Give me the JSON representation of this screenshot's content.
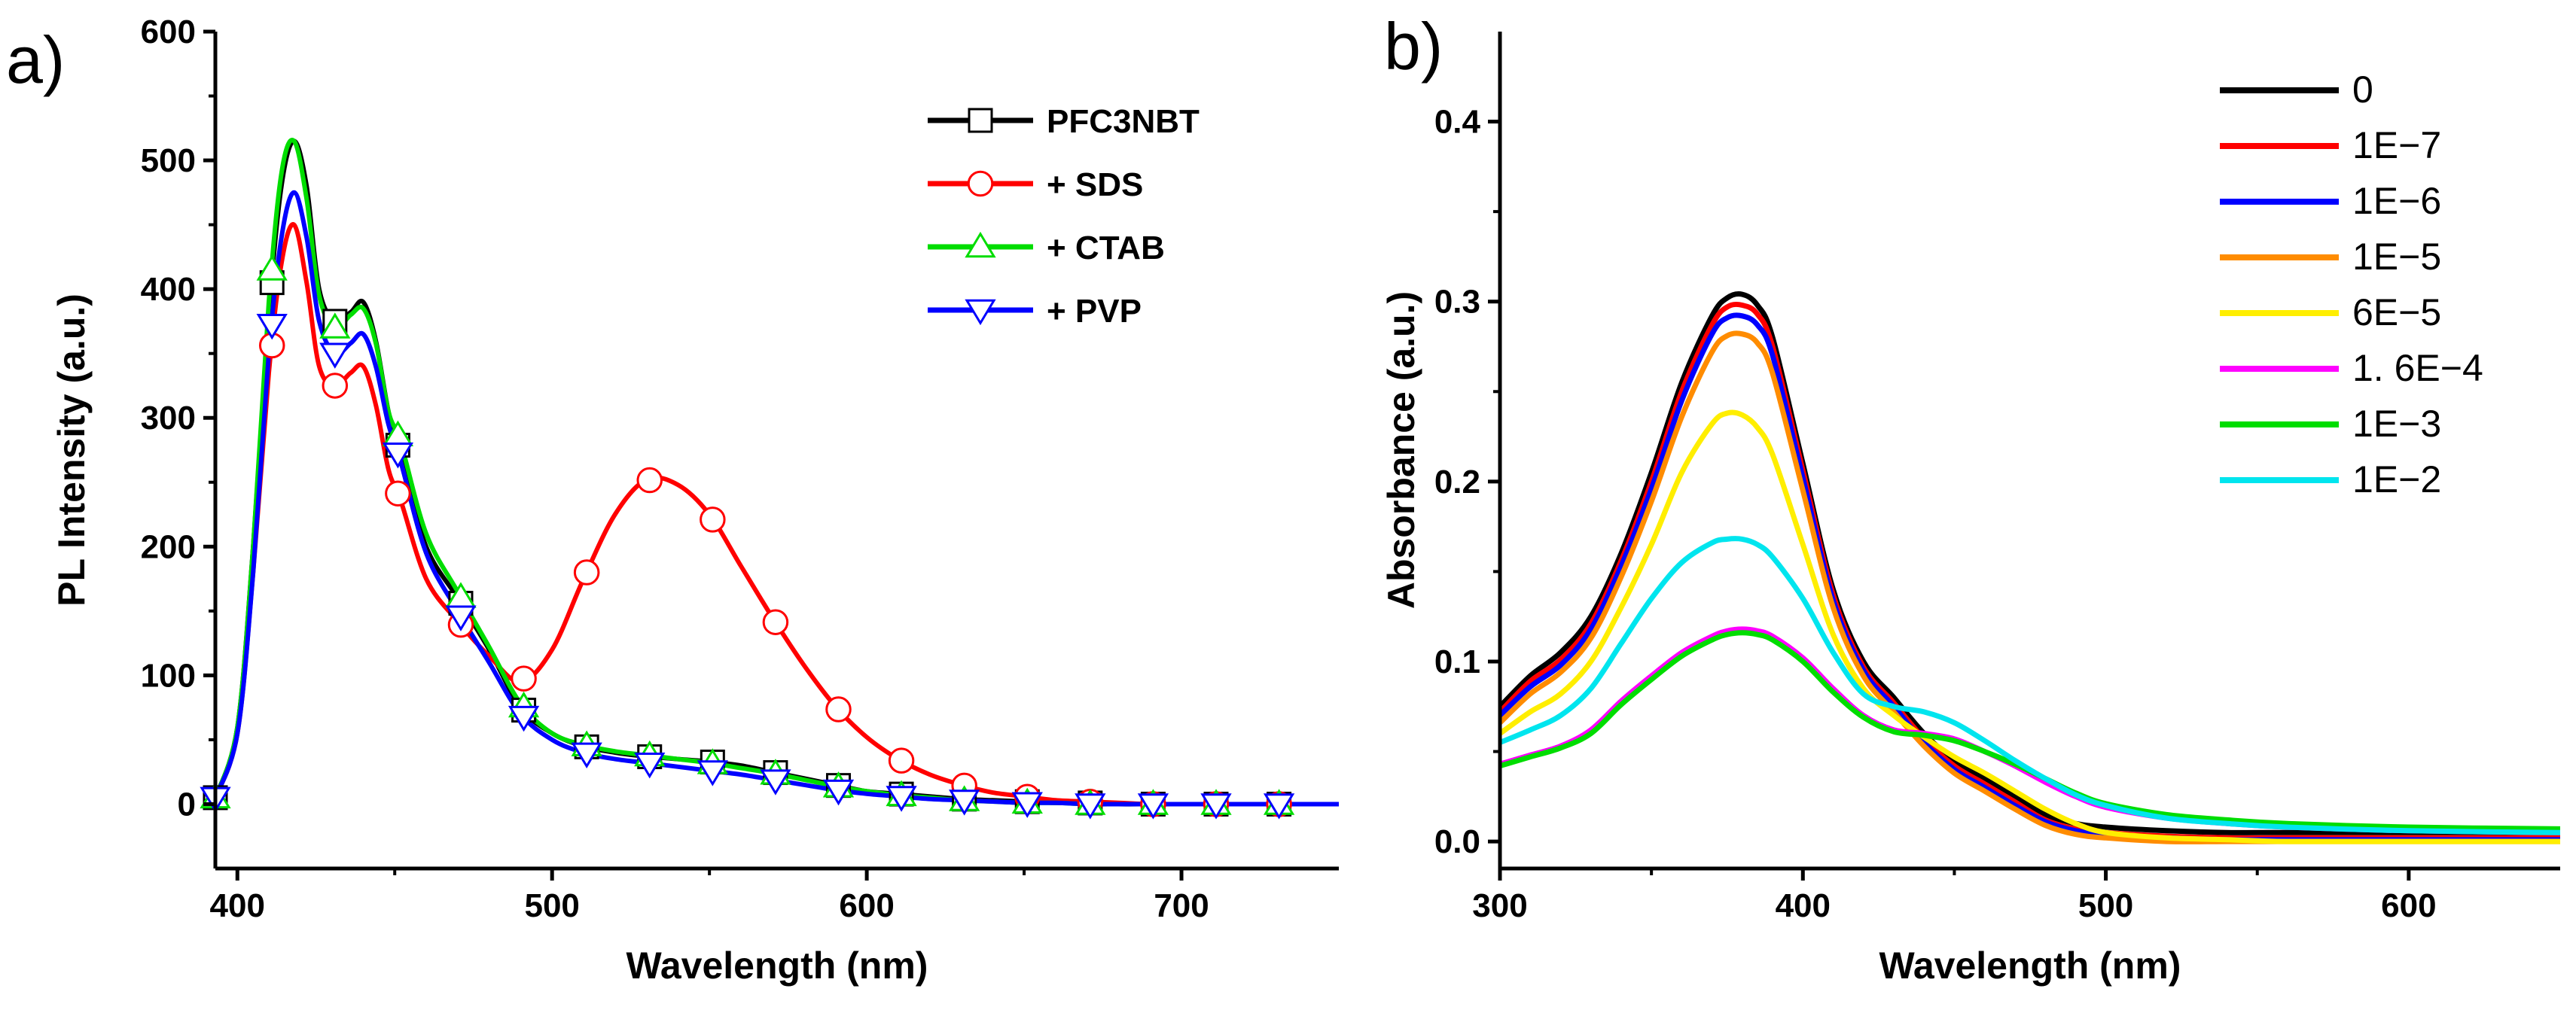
{
  "chart_data": [
    {
      "panel_label": "a)",
      "type": "line",
      "xlabel": "Wavelength (nm)",
      "ylabel": "PL Intensity (a.u.)",
      "xlim": [
        393,
        750
      ],
      "ylim": [
        -50,
        600
      ],
      "xticks": [
        400,
        500,
        600,
        700
      ],
      "yticks": [
        0,
        100,
        200,
        300,
        400,
        500,
        600
      ],
      "legend_position": "top-right",
      "series": [
        {
          "name": "PFC3NBT",
          "color": "#000000",
          "marker": "square",
          "x": [
            393,
            400,
            405,
            410,
            414,
            418,
            422,
            426,
            431,
            436,
            440,
            444,
            448,
            452,
            460,
            470,
            480,
            490,
            500,
            510,
            520,
            530,
            540,
            550,
            560,
            570,
            580,
            590,
            600,
            610,
            620,
            630,
            640,
            650,
            660,
            670,
            680,
            690,
            700,
            710,
            720,
            730,
            740,
            750
          ],
          "y": [
            5,
            60,
            200,
            380,
            480,
            515,
            480,
            400,
            375,
            382,
            390,
            360,
            305,
            270,
            200,
            160,
            120,
            75,
            55,
            45,
            40,
            37,
            35,
            33,
            30,
            25,
            20,
            15,
            10,
            8,
            6,
            4,
            3,
            2,
            1,
            1,
            0,
            0,
            0,
            0,
            0,
            0,
            0,
            0
          ],
          "marker_x": [
            393,
            411,
            431,
            451,
            471,
            491,
            511,
            531,
            551,
            571,
            591,
            611,
            631,
            651,
            671,
            691,
            711,
            731
          ]
        },
        {
          "name": "+ SDS",
          "color": "#ff0000",
          "marker": "circle",
          "x": [
            393,
            400,
            405,
            410,
            414,
            418,
            422,
            426,
            431,
            436,
            440,
            444,
            448,
            452,
            460,
            470,
            480,
            490,
            500,
            510,
            520,
            530,
            540,
            550,
            560,
            570,
            580,
            590,
            600,
            610,
            620,
            630,
            640,
            650,
            660,
            670,
            680,
            690,
            700,
            710,
            720,
            730,
            740,
            750
          ],
          "y": [
            5,
            55,
            180,
            335,
            420,
            450,
            405,
            340,
            325,
            335,
            340,
            310,
            260,
            235,
            175,
            142,
            115,
            95,
            120,
            175,
            225,
            252,
            248,
            225,
            185,
            145,
            108,
            76,
            52,
            35,
            23,
            15,
            9,
            6,
            3,
            2,
            1,
            0,
            0,
            0,
            0,
            0,
            0,
            0
          ],
          "marker_x": [
            411,
            431,
            451,
            471,
            491,
            511,
            531,
            551,
            571,
            591,
            611,
            631,
            651,
            671,
            691,
            711,
            731
          ]
        },
        {
          "name": "+ CTAB",
          "color": "#00dd00",
          "marker": "triangle-up",
          "x": [
            393,
            400,
            405,
            410,
            414,
            418,
            422,
            426,
            431,
            436,
            440,
            444,
            448,
            452,
            460,
            470,
            480,
            490,
            500,
            510,
            520,
            530,
            540,
            550,
            560,
            570,
            580,
            590,
            600,
            610,
            620,
            630,
            640,
            650,
            660,
            670,
            680,
            690,
            700,
            710,
            720,
            730,
            740,
            750
          ],
          "y": [
            5,
            60,
            200,
            390,
            490,
            515,
            470,
            395,
            370,
            380,
            385,
            358,
            305,
            280,
            210,
            165,
            122,
            78,
            55,
            46,
            41,
            38,
            35,
            32,
            28,
            24,
            19,
            14,
            10,
            7,
            5,
            3,
            2,
            1,
            1,
            0,
            0,
            0,
            0,
            0,
            0,
            0,
            0,
            0
          ],
          "marker_x": [
            393,
            411,
            431,
            451,
            471,
            491,
            511,
            531,
            551,
            571,
            591,
            611,
            631,
            651,
            671,
            691,
            711,
            731
          ]
        },
        {
          "name": "+ PVP",
          "color": "#0000ff",
          "marker": "triangle-down",
          "x": [
            393,
            400,
            405,
            410,
            414,
            418,
            422,
            426,
            431,
            436,
            440,
            444,
            448,
            452,
            460,
            470,
            480,
            490,
            500,
            510,
            520,
            530,
            540,
            550,
            560,
            570,
            580,
            590,
            600,
            610,
            620,
            630,
            640,
            650,
            660,
            670,
            680,
            690,
            700,
            710,
            720,
            730,
            740,
            750
          ],
          "y": [
            5,
            55,
            180,
            350,
            440,
            475,
            440,
            375,
            350,
            358,
            365,
            340,
            295,
            265,
            195,
            150,
            110,
            70,
            50,
            40,
            35,
            32,
            29,
            26,
            23,
            19,
            15,
            11,
            8,
            6,
            4,
            3,
            2,
            1,
            1,
            0,
            0,
            0,
            0,
            0,
            0,
            0,
            0,
            0
          ],
          "marker_x": [
            393,
            411,
            431,
            451,
            471,
            491,
            511,
            531,
            551,
            571,
            591,
            611,
            631,
            651,
            671,
            691,
            711,
            731
          ]
        }
      ]
    },
    {
      "panel_label": "b)",
      "type": "line",
      "xlabel": "Wavelength (nm)",
      "ylabel": "Absorbance (a.u.)",
      "xlim": [
        300,
        650
      ],
      "ylim": [
        -0.015,
        0.45
      ],
      "xticks": [
        300,
        400,
        500,
        600
      ],
      "yticks": [
        0.0,
        0.1,
        0.2,
        0.3,
        0.4
      ],
      "ytick_labels": [
        "0.0",
        "0.1",
        "0.2",
        "0.3",
        "0.4"
      ],
      "legend_position": "top-right",
      "series": [
        {
          "name": "0",
          "color": "#000000",
          "x": [
            300,
            310,
            320,
            330,
            340,
            350,
            360,
            370,
            375,
            380,
            385,
            390,
            400,
            410,
            420,
            430,
            440,
            450,
            460,
            470,
            480,
            490,
            500,
            520,
            540,
            560,
            600,
            650
          ],
          "y": [
            0.075,
            0.092,
            0.105,
            0.125,
            0.16,
            0.205,
            0.255,
            0.292,
            0.302,
            0.304,
            0.298,
            0.28,
            0.21,
            0.14,
            0.1,
            0.08,
            0.06,
            0.045,
            0.035,
            0.025,
            0.015,
            0.01,
            0.008,
            0.006,
            0.005,
            0.005,
            0.005,
            0.005
          ]
        },
        {
          "name": "1E−7",
          "color": "#ff0000",
          "x": [
            300,
            310,
            320,
            330,
            340,
            350,
            360,
            370,
            375,
            380,
            385,
            390,
            400,
            410,
            420,
            430,
            440,
            450,
            460,
            470,
            480,
            490,
            500,
            520,
            540,
            560,
            600,
            650
          ],
          "y": [
            0.072,
            0.089,
            0.101,
            0.121,
            0.156,
            0.2,
            0.25,
            0.287,
            0.297,
            0.298,
            0.293,
            0.275,
            0.206,
            0.137,
            0.097,
            0.077,
            0.057,
            0.042,
            0.032,
            0.022,
            0.012,
            0.007,
            0.005,
            0.003,
            0.002,
            0.002,
            0.002,
            0.002
          ]
        },
        {
          "name": "1E−6",
          "color": "#0000ff",
          "x": [
            300,
            310,
            320,
            330,
            340,
            350,
            360,
            370,
            375,
            380,
            385,
            390,
            400,
            410,
            420,
            430,
            440,
            450,
            460,
            470,
            480,
            490,
            500,
            520,
            540,
            560,
            600,
            650
          ],
          "y": [
            0.07,
            0.086,
            0.098,
            0.118,
            0.153,
            0.196,
            0.245,
            0.282,
            0.291,
            0.292,
            0.287,
            0.27,
            0.202,
            0.134,
            0.095,
            0.075,
            0.055,
            0.04,
            0.03,
            0.02,
            0.011,
            0.006,
            0.004,
            0.002,
            0.001,
            0.001,
            0.001,
            0.001
          ]
        },
        {
          "name": "1E−5",
          "color": "#ff8c00",
          "x": [
            300,
            310,
            320,
            330,
            340,
            350,
            360,
            370,
            375,
            380,
            385,
            390,
            400,
            410,
            420,
            430,
            440,
            450,
            460,
            470,
            480,
            490,
            500,
            520,
            540,
            560,
            600,
            650
          ],
          "y": [
            0.066,
            0.082,
            0.094,
            0.113,
            0.147,
            0.189,
            0.236,
            0.272,
            0.281,
            0.282,
            0.277,
            0.26,
            0.195,
            0.13,
            0.092,
            0.072,
            0.053,
            0.038,
            0.028,
            0.018,
            0.009,
            0.004,
            0.002,
            0.0,
            0.0,
            0.0,
            0.0,
            0.0
          ]
        },
        {
          "name": "6E−5",
          "color": "#ffee00",
          "x": [
            300,
            310,
            320,
            330,
            340,
            350,
            360,
            370,
            375,
            380,
            385,
            390,
            400,
            410,
            420,
            430,
            440,
            450,
            460,
            470,
            480,
            490,
            500,
            520,
            540,
            560,
            600,
            650
          ],
          "y": [
            0.06,
            0.072,
            0.082,
            0.1,
            0.13,
            0.165,
            0.205,
            0.232,
            0.238,
            0.237,
            0.23,
            0.215,
            0.165,
            0.115,
            0.085,
            0.07,
            0.058,
            0.047,
            0.038,
            0.028,
            0.018,
            0.01,
            0.005,
            0.002,
            0.001,
            0.0,
            0.0,
            0.0
          ]
        },
        {
          "name": "1. 6E−4",
          "color": "#ff00ff",
          "x": [
            300,
            310,
            320,
            330,
            340,
            350,
            360,
            370,
            375,
            380,
            385,
            390,
            400,
            410,
            420,
            430,
            440,
            450,
            460,
            470,
            480,
            490,
            500,
            520,
            540,
            560,
            600,
            650
          ],
          "y": [
            0.043,
            0.048,
            0.053,
            0.062,
            0.078,
            0.092,
            0.105,
            0.114,
            0.117,
            0.118,
            0.117,
            0.114,
            0.102,
            0.085,
            0.07,
            0.062,
            0.06,
            0.057,
            0.05,
            0.042,
            0.033,
            0.025,
            0.019,
            0.013,
            0.01,
            0.008,
            0.006,
            0.005
          ]
        },
        {
          "name": "1E−3",
          "color": "#00dd00",
          "x": [
            300,
            310,
            320,
            330,
            340,
            350,
            360,
            370,
            375,
            380,
            385,
            390,
            400,
            410,
            420,
            430,
            440,
            450,
            460,
            470,
            480,
            490,
            500,
            520,
            540,
            560,
            600,
            650
          ],
          "y": [
            0.042,
            0.047,
            0.052,
            0.06,
            0.076,
            0.09,
            0.103,
            0.112,
            0.115,
            0.116,
            0.115,
            0.112,
            0.1,
            0.083,
            0.069,
            0.061,
            0.059,
            0.056,
            0.05,
            0.043,
            0.035,
            0.027,
            0.021,
            0.015,
            0.012,
            0.01,
            0.008,
            0.007
          ]
        },
        {
          "name": "1E−2",
          "color": "#00e5ee",
          "x": [
            300,
            310,
            320,
            330,
            340,
            350,
            360,
            370,
            375,
            380,
            385,
            390,
            400,
            410,
            420,
            430,
            440,
            450,
            460,
            470,
            480,
            490,
            500,
            520,
            540,
            560,
            600,
            650
          ],
          "y": [
            0.055,
            0.062,
            0.07,
            0.085,
            0.11,
            0.135,
            0.155,
            0.166,
            0.168,
            0.168,
            0.165,
            0.158,
            0.135,
            0.105,
            0.082,
            0.075,
            0.072,
            0.066,
            0.056,
            0.045,
            0.035,
            0.026,
            0.02,
            0.013,
            0.01,
            0.008,
            0.006,
            0.005
          ]
        }
      ]
    }
  ]
}
